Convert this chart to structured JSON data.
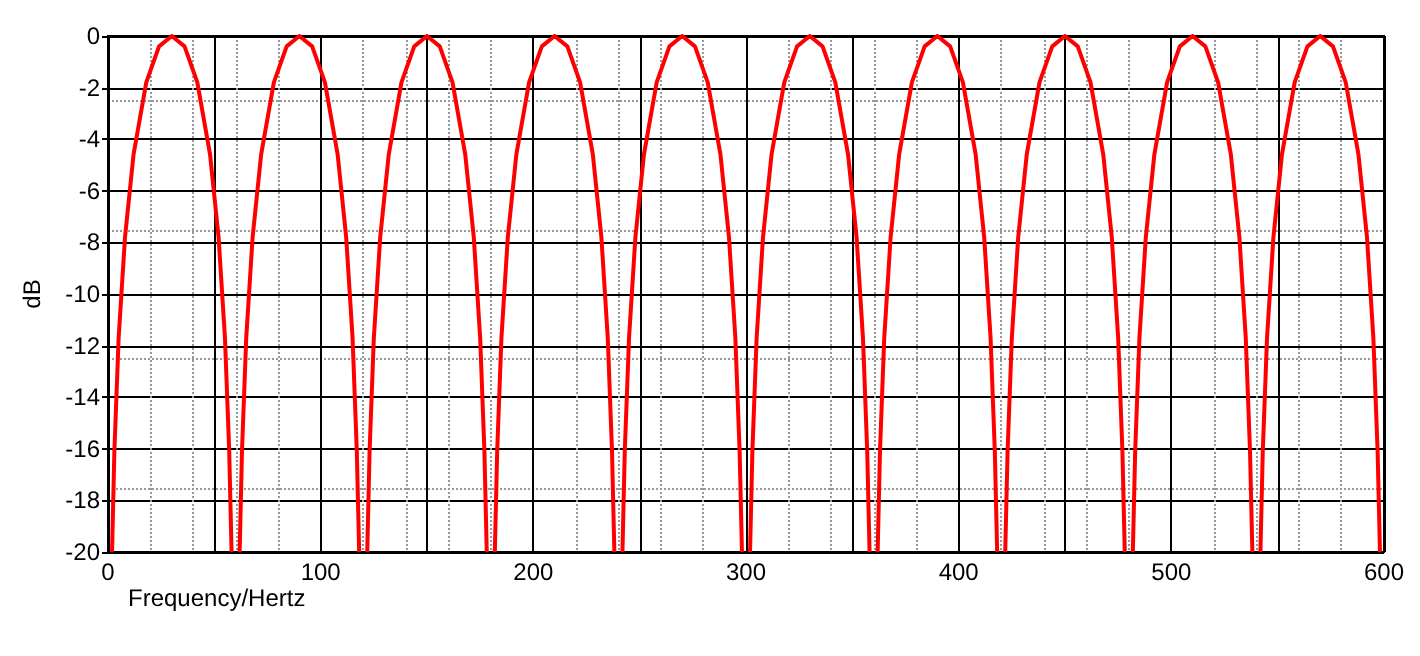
{
  "chart_data": {
    "type": "line",
    "xlabel": "Frequency/Hertz",
    "ylabel": "dB",
    "xlim": [
      0,
      600
    ],
    "ylim": [
      -20,
      0
    ],
    "xticks": [
      0,
      {
        "value": 50,
        "label": null
      },
      100,
      {
        "value": 150,
        "label": null
      },
      200,
      {
        "value": 250,
        "label": null
      },
      300,
      {
        "value": 350,
        "label": null
      },
      400,
      {
        "value": 450,
        "label": null
      },
      500,
      {
        "value": 550,
        "label": null
      },
      600
    ],
    "yticks": [
      -20,
      -18,
      -16,
      -14,
      -12,
      -10,
      -8,
      -6,
      -4,
      -2,
      0
    ],
    "grid": true,
    "marker": "none",
    "line_style": "solid",
    "x": [
      1.9,
      3,
      5,
      8,
      12,
      18,
      24,
      30,
      36,
      42,
      48,
      52,
      55,
      57,
      58.1,
      59,
      61.9,
      63,
      65,
      68,
      72,
      78,
      84,
      90,
      96,
      102,
      108,
      112,
      115,
      117,
      118.1,
      119,
      121.9,
      123,
      125,
      128,
      132,
      138,
      144,
      150,
      156,
      162,
      168,
      172,
      175,
      177,
      178.1,
      179,
      181.9,
      183,
      185,
      188,
      192,
      198,
      204,
      210,
      216,
      222,
      228,
      232,
      235,
      237,
      238.1,
      239,
      241.9,
      243,
      245,
      248,
      252,
      258,
      264,
      270,
      276,
      282,
      288,
      292,
      295,
      297,
      298.1,
      299,
      301.9,
      303,
      305,
      308,
      312,
      318,
      324,
      330,
      336,
      342,
      348,
      352,
      355,
      357,
      358.1,
      359,
      361.9,
      363,
      365,
      368,
      372,
      378,
      384,
      390,
      396,
      402,
      408,
      412,
      415,
      417,
      418.1,
      419,
      421.9,
      423,
      425,
      428,
      432,
      438,
      444,
      450,
      456,
      462,
      468,
      472,
      475,
      477,
      478.1,
      479,
      481.9,
      483,
      485,
      488,
      492,
      498,
      504,
      510,
      516,
      522,
      528,
      532,
      535,
      537,
      538.1,
      539,
      541.9,
      543,
      545,
      548,
      552,
      558,
      564,
      570,
      576,
      582,
      588,
      592,
      595,
      597,
      598.1
    ],
    "series": [
      {
        "color": "#ff0000",
        "values": [
          -20,
          -16.1,
          -11.7,
          -7.8,
          -4.6,
          -1.8,
          -0.4,
          0,
          -0.4,
          -1.8,
          -4.6,
          -7.8,
          -11.7,
          -16.1,
          -20,
          null,
          -20,
          -16.1,
          -11.7,
          -7.8,
          -4.6,
          -1.8,
          -0.4,
          0,
          -0.4,
          -1.8,
          -4.6,
          -7.8,
          -11.7,
          -16.1,
          -20,
          null,
          -20,
          -16.1,
          -11.7,
          -7.8,
          -4.6,
          -1.8,
          -0.4,
          0,
          -0.4,
          -1.8,
          -4.6,
          -7.8,
          -11.7,
          -16.1,
          -20,
          null,
          -20,
          -16.1,
          -11.7,
          -7.8,
          -4.6,
          -1.8,
          -0.4,
          0,
          -0.4,
          -1.8,
          -4.6,
          -7.8,
          -11.7,
          -16.1,
          -20,
          null,
          -20,
          -16.1,
          -11.7,
          -7.8,
          -4.6,
          -1.8,
          -0.4,
          0,
          -0.4,
          -1.8,
          -4.6,
          -7.8,
          -11.7,
          -16.1,
          -20,
          null,
          -20,
          -16.1,
          -11.7,
          -7.8,
          -4.6,
          -1.8,
          -0.4,
          0,
          -0.4,
          -1.8,
          -4.6,
          -7.8,
          -11.7,
          -16.1,
          -20,
          null,
          -20,
          -16.1,
          -11.7,
          -7.8,
          -4.6,
          -1.8,
          -0.4,
          0,
          -0.4,
          -1.8,
          -4.6,
          -7.8,
          -11.7,
          -16.1,
          -20,
          null,
          -20,
          -16.1,
          -11.7,
          -7.8,
          -4.6,
          -1.8,
          -0.4,
          0,
          -0.4,
          -1.8,
          -4.6,
          -7.8,
          -11.7,
          -16.1,
          -20,
          null,
          -20,
          -16.1,
          -11.7,
          -7.8,
          -4.6,
          -1.8,
          -0.4,
          0,
          -0.4,
          -1.8,
          -4.6,
          -7.8,
          -11.7,
          -16.1,
          -20,
          null,
          -20,
          -16.1,
          -11.7,
          -7.8,
          -4.6,
          -1.8,
          -0.4,
          0,
          -0.4,
          -1.8,
          -4.6,
          -7.8,
          -11.7,
          -16.1,
          -20
        ]
      }
    ]
  }
}
